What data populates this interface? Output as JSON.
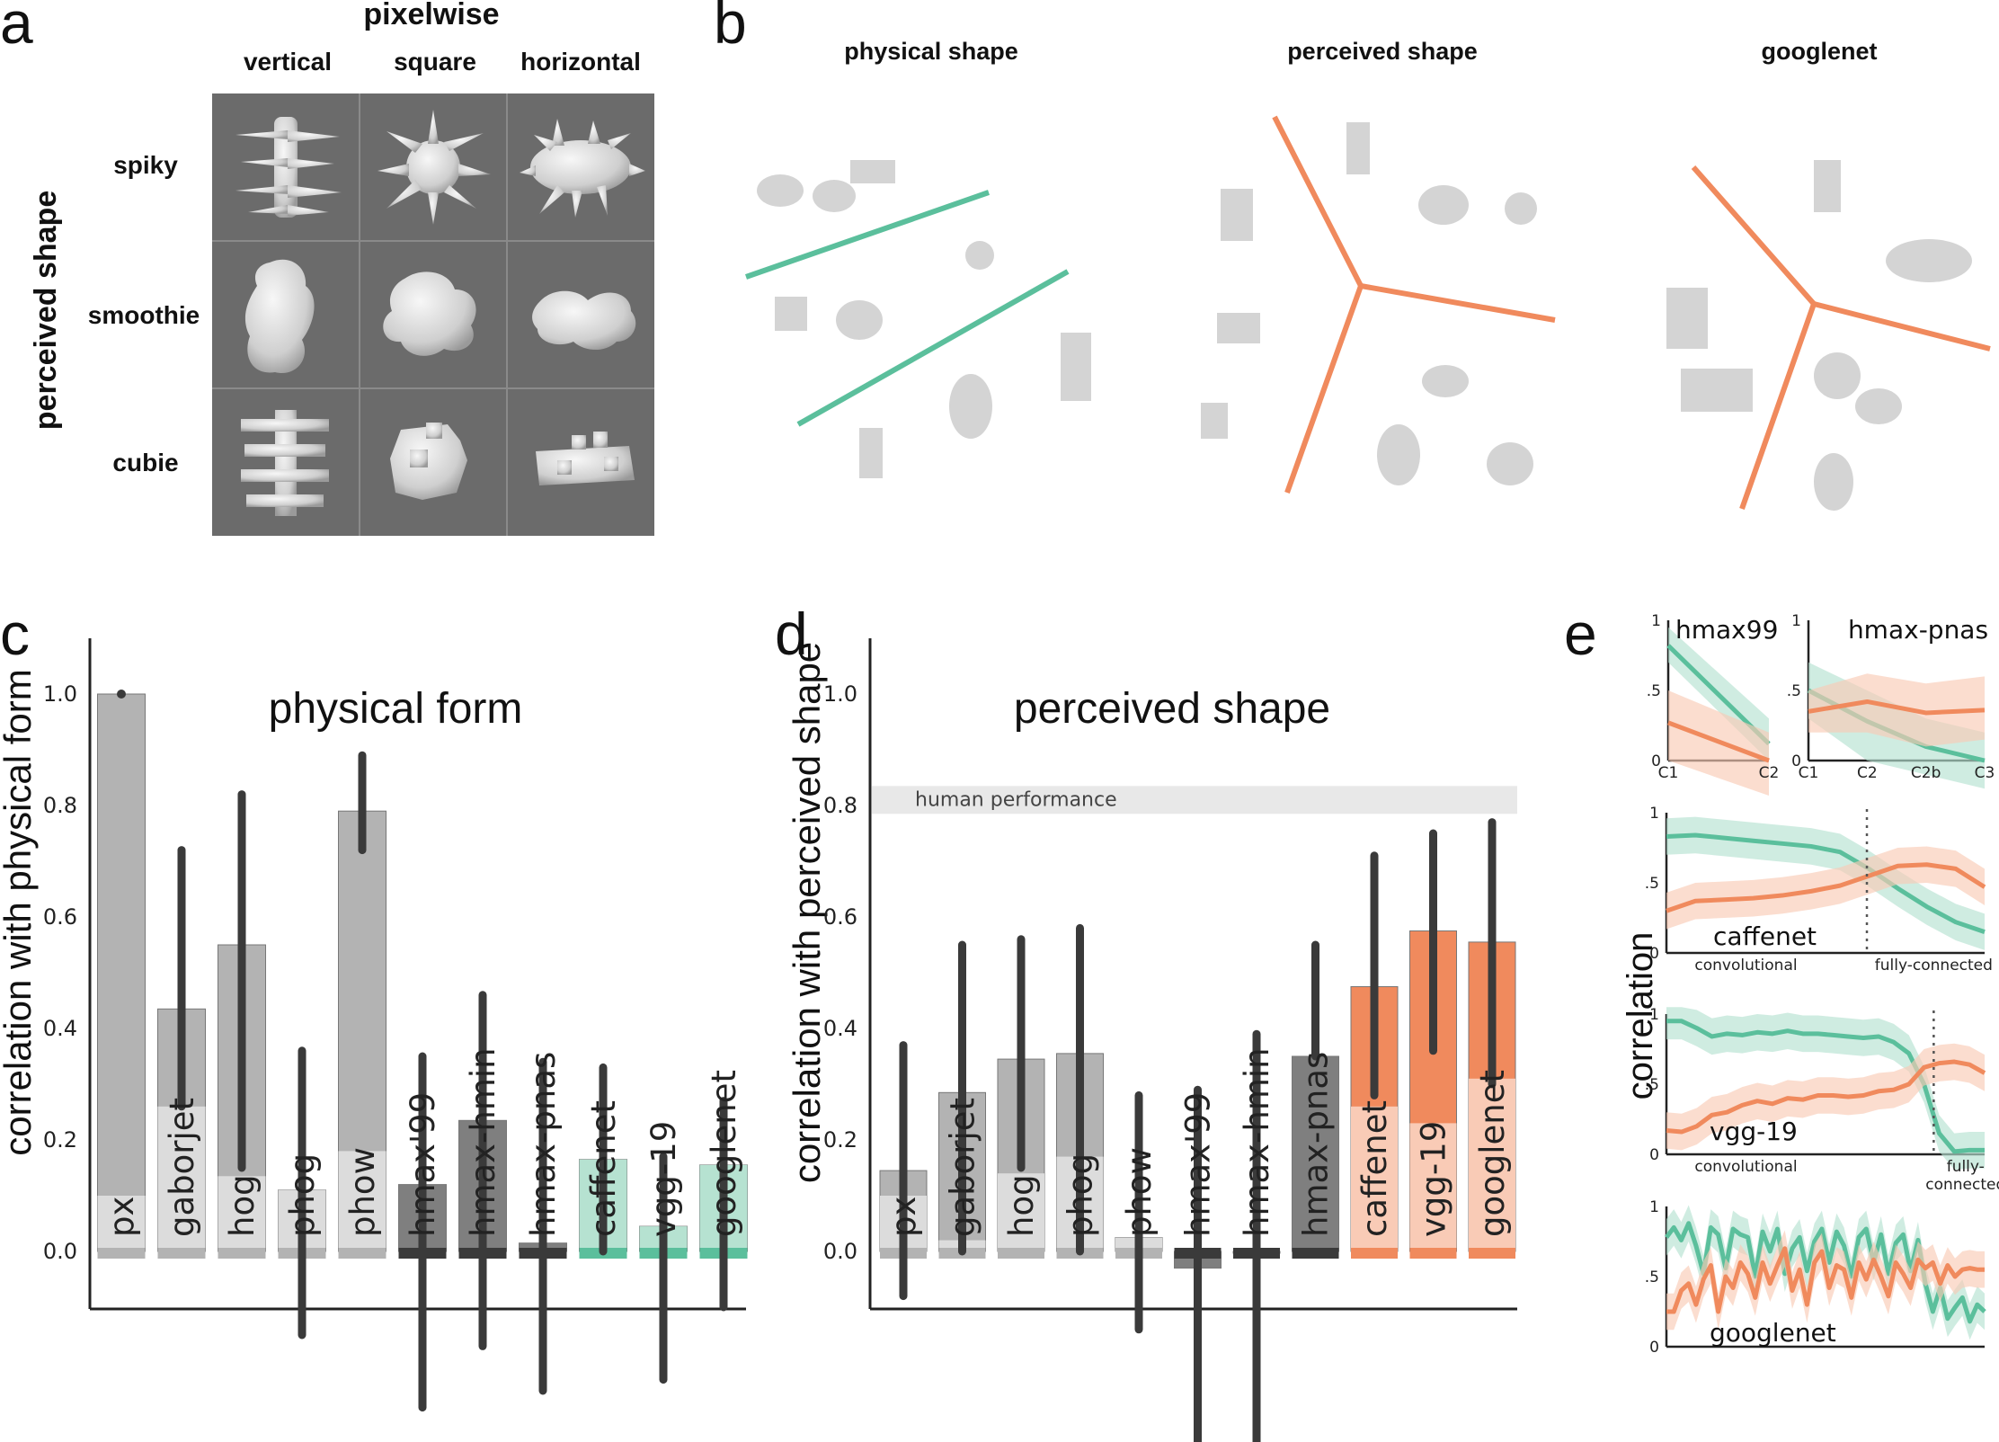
{
  "panels": {
    "a": {
      "letter": "a",
      "col_title": "pixelwise",
      "columns": [
        "vertical",
        "square",
        "horizontal"
      ],
      "row_title": "perceived shape",
      "rows": [
        "spiky",
        "smoothie",
        "cubie"
      ]
    },
    "b": {
      "letter": "b",
      "titles": [
        "physical shape",
        "perceived shape",
        "googlenet"
      ]
    },
    "e": {
      "letter": "e",
      "ylabel": "correlation"
    }
  },
  "colors": {
    "green": "#5bbf9c",
    "green_light": "#b6e2d1",
    "orange": "#f08a5d",
    "orange_light": "#f9cbb6",
    "gray": "#b3b3b3",
    "gray_dark": "#7f7f7f",
    "gray_light": "#dcdcdc",
    "errorbar": "#3a3a3a",
    "human_band": "#e8e8e8"
  },
  "chart_data": [
    {
      "id": "c",
      "letter": "c",
      "type": "bar",
      "title": "physical form",
      "ylabel": "correlation with physical form",
      "ylim": [
        -0.2,
        1.1
      ],
      "yticks": [
        "0.0",
        "0.2",
        "0.4",
        "0.6",
        "0.8",
        "1.0"
      ],
      "categories": [
        "px",
        "gaborjet",
        "hog",
        "phog",
        "phow",
        "hmax'99",
        "hmax-hmin",
        "hmax-pnas",
        "caffenet",
        "vgg-19",
        "googlenet"
      ],
      "values": [
        1.0,
        0.435,
        0.55,
        0.11,
        0.79,
        0.12,
        0.235,
        0.015,
        0.165,
        0.045,
        0.155
      ],
      "lower_fill": [
        0.1,
        0.26,
        0.135,
        0.11,
        0.18,
        0.12,
        0.235,
        0.015,
        0.165,
        0.045,
        0.155
      ],
      "err_low": [
        1.0,
        0.26,
        0.15,
        -0.15,
        0.72,
        -0.28,
        -0.17,
        -0.25,
        0.0,
        -0.23,
        -0.1
      ],
      "err_high": [
        1.0,
        0.72,
        0.82,
        0.36,
        0.89,
        0.35,
        0.46,
        0.34,
        0.33,
        0.17,
        0.27
      ],
      "family": [
        "gray",
        "gray",
        "gray",
        "gray",
        "gray",
        "dark",
        "dark",
        "dark",
        "green",
        "green",
        "green"
      ]
    },
    {
      "id": "d",
      "letter": "d",
      "type": "bar",
      "title": "perceived shape",
      "ylabel": "correlation with perceived shape",
      "ylim": [
        -0.2,
        1.1
      ],
      "yticks": [
        "0.0",
        "0.2",
        "0.4",
        "0.6",
        "0.8",
        "1.0"
      ],
      "band_label": "human performance",
      "band": [
        0.785,
        0.835
      ],
      "categories": [
        "px",
        "gaborjet",
        "hog",
        "phog",
        "phow",
        "hmax'99",
        "hmax-hmin",
        "hmax-pnas",
        "caffenet",
        "vgg-19",
        "googlenet"
      ],
      "values": [
        0.145,
        0.285,
        0.345,
        0.355,
        0.025,
        -0.03,
        0.0,
        0.35,
        0.475,
        0.575,
        0.555
      ],
      "lower_fill": [
        0.1,
        0.02,
        0.14,
        0.17,
        0.025,
        -0.03,
        0.0,
        0.35,
        0.26,
        0.23,
        0.31
      ],
      "err_low": [
        -0.08,
        0.0,
        0.15,
        0.0,
        -0.14,
        -0.36,
        -0.36,
        0.35,
        0.28,
        0.36,
        0.3
      ],
      "err_high": [
        0.37,
        0.55,
        0.56,
        0.58,
        0.28,
        0.29,
        0.39,
        0.55,
        0.71,
        0.75,
        0.77
      ],
      "family": [
        "gray",
        "gray",
        "gray",
        "gray",
        "gray",
        "dark",
        "dark",
        "dark",
        "orange",
        "orange",
        "orange"
      ]
    },
    {
      "id": "e1",
      "type": "line",
      "label": "hmax99",
      "xticks": [
        "C1",
        "C2"
      ],
      "ylim": [
        0,
        1
      ],
      "yticks": [
        "0",
        ".5",
        "1"
      ],
      "series": [
        {
          "color": "green",
          "values": [
            0.82,
            0.12
          ],
          "band": [
            [
              0.7,
              0.95
            ],
            [
              0.0,
              0.3
            ]
          ]
        },
        {
          "color": "orange",
          "values": [
            0.27,
            0.0
          ],
          "band": [
            [
              0.0,
              0.5
            ],
            [
              -0.3,
              0.2
            ]
          ]
        }
      ]
    },
    {
      "id": "e2",
      "type": "line",
      "label": "hmax-pnas",
      "xticks": [
        "C1",
        "C2",
        "C2b",
        "C3"
      ],
      "ylim": [
        0,
        1
      ],
      "yticks": [
        "0",
        ".5",
        "1"
      ],
      "series": [
        {
          "color": "green",
          "values": [
            0.5,
            0.28,
            0.1,
            0.0
          ],
          "band": [
            [
              0.3,
              0.7
            ],
            [
              0.0,
              0.5
            ],
            [
              -0.1,
              0.3
            ],
            [
              -0.2,
              0.2
            ]
          ]
        },
        {
          "color": "orange",
          "values": [
            0.35,
            0.42,
            0.34,
            0.36
          ],
          "band": [
            [
              0.2,
              0.5
            ],
            [
              0.2,
              0.62
            ],
            [
              0.1,
              0.55
            ],
            [
              0.15,
              0.6
            ]
          ]
        }
      ]
    },
    {
      "id": "e3",
      "type": "line",
      "label": "caffenet",
      "xlabels": [
        "convolutional",
        "fully-connected"
      ],
      "ylim": [
        0,
        1
      ],
      "yticks": [
        "0",
        ".5",
        "1"
      ],
      "divider": 0.63,
      "series": [
        {
          "color": "green",
          "values": [
            0.83,
            0.84,
            0.82,
            0.8,
            0.78,
            0.76,
            0.72,
            0.6,
            0.46,
            0.33,
            0.22,
            0.15
          ]
        },
        {
          "color": "orange",
          "values": [
            0.3,
            0.37,
            0.38,
            0.39,
            0.41,
            0.44,
            0.48,
            0.55,
            0.62,
            0.63,
            0.6,
            0.47
          ]
        }
      ]
    },
    {
      "id": "e4",
      "type": "line",
      "label": "vgg-19",
      "xlabels": [
        "convolutional",
        "fully-\nconnected"
      ],
      "ylim": [
        0,
        1
      ],
      "yticks": [
        "0",
        ".5",
        "1"
      ],
      "divider": 0.84,
      "series": [
        {
          "color": "green",
          "values": [
            0.95,
            0.95,
            0.9,
            0.84,
            0.86,
            0.85,
            0.87,
            0.86,
            0.88,
            0.86,
            0.86,
            0.85,
            0.84,
            0.83,
            0.84,
            0.8,
            0.72,
            0.5,
            0.15,
            0.02,
            0.03,
            0.03
          ]
        },
        {
          "color": "orange",
          "values": [
            0.17,
            0.16,
            0.2,
            0.28,
            0.3,
            0.35,
            0.38,
            0.36,
            0.4,
            0.39,
            0.42,
            0.42,
            0.41,
            0.42,
            0.45,
            0.46,
            0.5,
            0.62,
            0.65,
            0.66,
            0.64,
            0.58
          ]
        }
      ]
    },
    {
      "id": "e5",
      "type": "line",
      "label": "googlenet",
      "ylim": [
        0,
        1
      ],
      "yticks": [
        "0",
        ".5",
        "1"
      ],
      "series": [
        {
          "color": "green",
          "values": [
            0.78,
            0.85,
            0.76,
            0.88,
            0.72,
            0.52,
            0.85,
            0.8,
            0.56,
            0.84,
            0.8,
            0.78,
            0.5,
            0.82,
            0.68,
            0.84,
            0.52,
            0.7,
            0.78,
            0.54,
            0.75,
            0.84,
            0.6,
            0.82,
            0.72,
            0.5,
            0.78,
            0.84,
            0.6,
            0.8,
            0.52,
            0.74,
            0.8,
            0.54,
            0.76,
            0.45,
            0.25,
            0.42,
            0.2,
            0.28,
            0.35,
            0.18,
            0.3,
            0.25
          ]
        },
        {
          "color": "orange",
          "values": [
            0.25,
            0.25,
            0.4,
            0.45,
            0.3,
            0.48,
            0.58,
            0.25,
            0.5,
            0.42,
            0.6,
            0.52,
            0.35,
            0.6,
            0.45,
            0.58,
            0.7,
            0.4,
            0.55,
            0.3,
            0.6,
            0.68,
            0.42,
            0.58,
            0.55,
            0.35,
            0.6,
            0.48,
            0.62,
            0.5,
            0.36,
            0.6,
            0.52,
            0.42,
            0.62,
            0.56,
            0.6,
            0.45,
            0.58,
            0.5,
            0.55,
            0.56,
            0.55,
            0.55
          ]
        }
      ]
    }
  ]
}
